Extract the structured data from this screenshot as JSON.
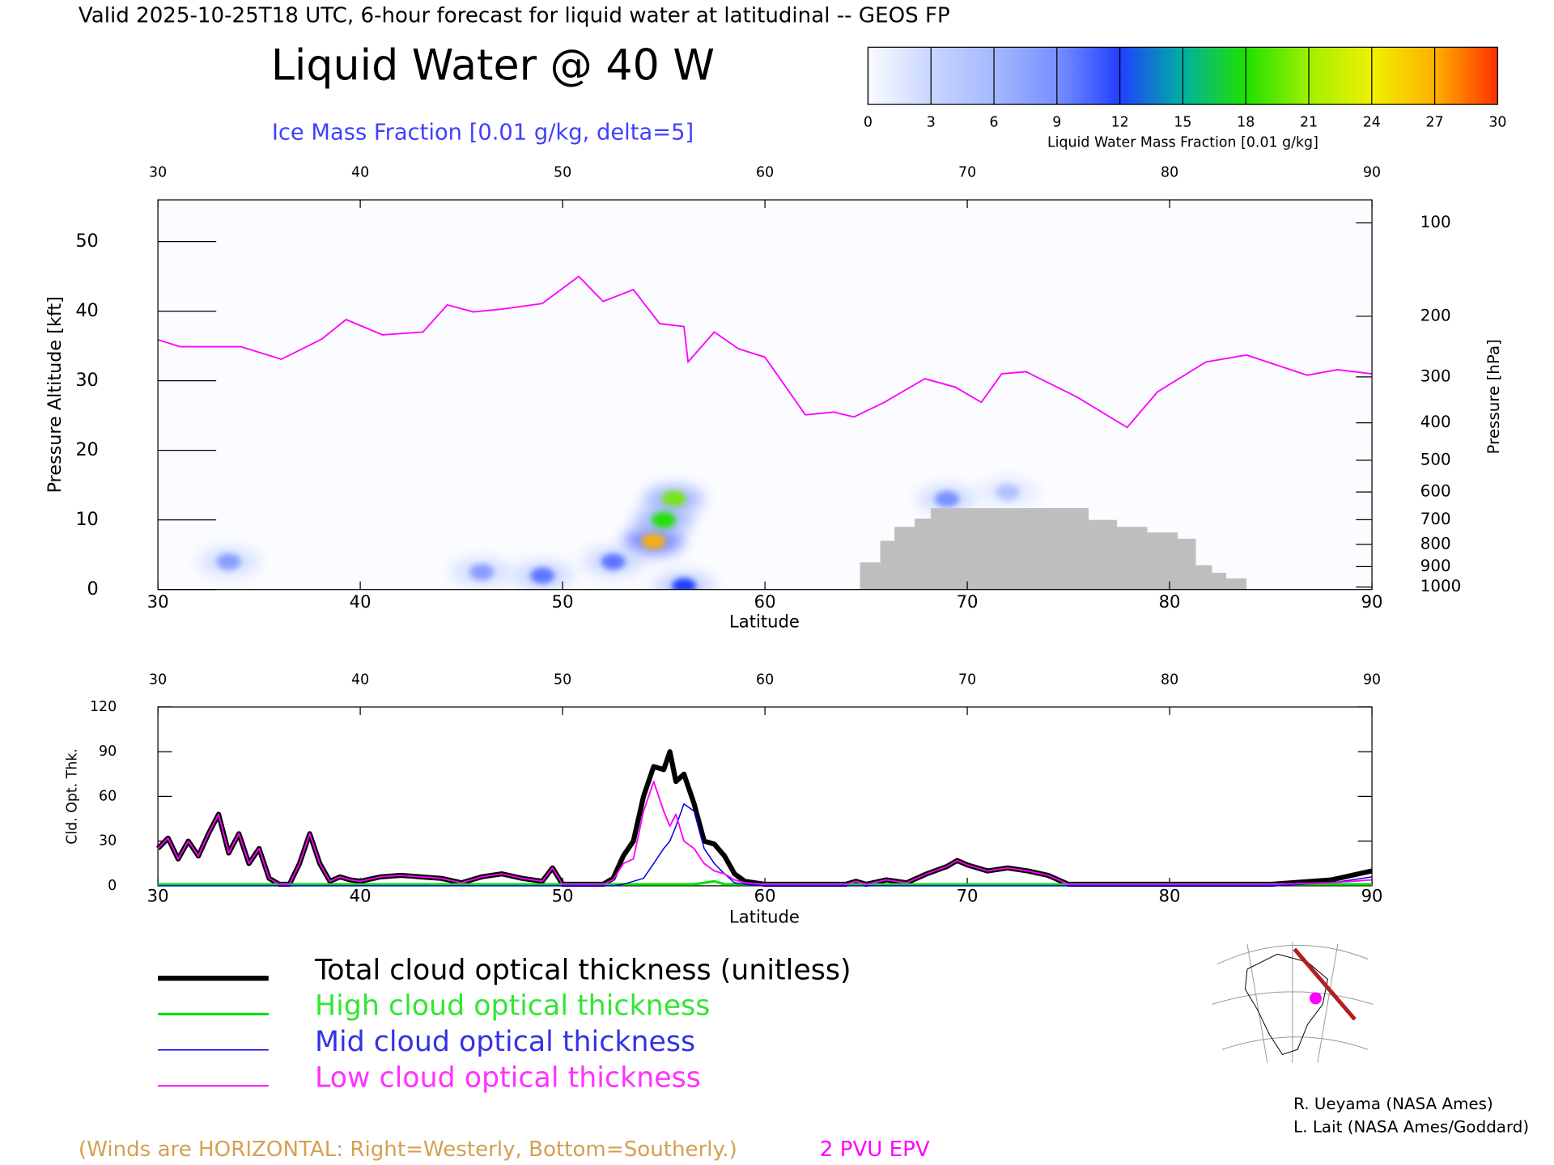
{
  "chart_data": [
    {
      "type": "cross-section",
      "suptitle": "Valid 2025-10-25T18 UTC, 6-hour forecast for liquid water at latitudinal -- GEOS FP",
      "title": "Liquid Water @ 40 W",
      "subtitle": "Ice Mass Fraction [0.01 g/kg, delta=5]",
      "xlabel": "Latitude",
      "ylabel": "Pressure Altitude [kft]",
      "y2label": "Pressure [hPa]",
      "xlim": [
        30,
        90
      ],
      "xticks": [
        30,
        40,
        50,
        60,
        70,
        80,
        90
      ],
      "ylim": [
        0,
        56
      ],
      "yticks": [
        0,
        10,
        20,
        30,
        40,
        50
      ],
      "y2lim": [
        1013,
        83
      ],
      "y2scale": "pressure-altitude",
      "y2ticks": [
        100,
        200,
        300,
        400,
        500,
        600,
        700,
        800,
        900,
        1000
      ],
      "colorbar": {
        "label": "Liquid Water Mass Fraction [0.01 g/kg]",
        "ticks": [
          0,
          3,
          6,
          9,
          12,
          15,
          18,
          21,
          24,
          27,
          30
        ],
        "colors": [
          "#fafbff",
          "#c8d6ff",
          "#a4b8ff",
          "#7890ff",
          "#2040ff",
          "#00b0a0",
          "#20e000",
          "#a0f000",
          "#f0f000",
          "#ffb000",
          "#ff3000"
        ]
      },
      "series": [
        {
          "name": "2 PVU EPV",
          "color": "#ff00ff",
          "x": [
            30.0,
            31.1,
            34.1,
            36.1,
            38.1,
            39.3,
            41.1,
            43.1,
            44.3,
            45.6,
            47.0,
            49.0,
            50.8,
            52.0,
            53.5,
            54.8,
            56.0,
            56.2,
            57.5,
            58.7,
            60.0,
            62.0,
            63.4,
            64.4,
            65.9,
            67.9,
            69.4,
            70.7,
            71.7,
            72.9,
            75.4,
            77.9,
            79.4,
            81.8,
            83.8,
            86.8,
            88.3,
            90.0
          ],
          "values": [
            35.9,
            34.9,
            34.9,
            33.1,
            36.0,
            38.8,
            36.6,
            37.0,
            40.9,
            39.9,
            40.3,
            41.1,
            45.0,
            41.4,
            43.1,
            38.2,
            37.8,
            32.7,
            37.0,
            34.6,
            33.4,
            25.1,
            25.5,
            24.8,
            26.9,
            30.3,
            29.1,
            26.9,
            31.0,
            31.3,
            27.7,
            23.3,
            28.4,
            32.7,
            33.7,
            30.8,
            31.6,
            31.0
          ]
        }
      ],
      "terrain": {
        "color": "#bebebe",
        "bins": [
          64.7,
          65.7,
          66.4,
          67.4,
          68.2,
          76.0,
          77.4,
          78.9,
          80.4,
          81.3,
          82.1,
          82.8,
          83.8
        ],
        "values": [
          3.9,
          7,
          9,
          10.2,
          11.7,
          10,
          9,
          8.2,
          7.3,
          3.5,
          2.4,
          1.6
        ]
      },
      "cells": {
        "lat": [
          54.5,
          55.5,
          55.0,
          52.5,
          33.5,
          46.0,
          49.0,
          56.0,
          69.0,
          72.0
        ],
        "alt": [
          7,
          13,
          10,
          4,
          4,
          2.5,
          2,
          0.5,
          13,
          14
        ],
        "values": [
          27,
          20,
          18,
          10,
          8,
          8,
          10,
          12,
          9,
          5
        ]
      }
    },
    {
      "type": "line",
      "xlabel": "Latitude",
      "ylabel": "Cld. Opt. Thk.",
      "xlim": [
        30,
        90
      ],
      "xticks": [
        30,
        40,
        50,
        60,
        70,
        80,
        90
      ],
      "ylim": [
        0,
        120
      ],
      "yticks": [
        0,
        30,
        60,
        90,
        120
      ],
      "x": [
        30,
        30.5,
        31,
        31.5,
        32,
        32.5,
        33,
        33.5,
        34,
        34.5,
        35,
        35.5,
        36,
        36.5,
        37,
        37.5,
        38,
        38.5,
        39,
        39.5,
        40,
        41,
        42,
        43,
        44,
        45,
        46,
        47,
        48,
        49,
        49.5,
        50,
        51,
        52,
        52.5,
        53,
        53.5,
        54,
        54.5,
        55,
        55.3,
        55.6,
        56,
        56.5,
        57,
        57.5,
        58,
        58.5,
        59,
        60,
        62,
        64,
        64.5,
        65,
        66,
        67,
        68,
        69,
        69.5,
        70,
        71,
        72,
        73,
        74,
        75,
        80,
        85,
        88,
        89,
        90
      ],
      "series": [
        {
          "name": "Total cloud optical thickness (unitless)",
          "color": "#000000",
          "width": 5,
          "values": [
            25,
            32,
            18,
            30,
            20,
            35,
            48,
            22,
            35,
            15,
            25,
            5,
            1,
            1,
            15,
            35,
            15,
            3,
            6,
            4,
            3,
            6,
            7,
            6,
            5,
            2,
            6,
            8,
            5,
            3,
            12,
            1,
            1,
            1,
            5,
            20,
            30,
            60,
            80,
            78,
            90,
            70,
            75,
            55,
            30,
            28,
            20,
            8,
            3,
            1,
            1,
            1,
            3,
            1,
            4,
            2,
            8,
            13,
            17,
            14,
            10,
            12,
            10,
            7,
            1,
            1,
            1,
            4,
            7,
            10
          ]
        },
        {
          "name": "High cloud optical thickness",
          "color": "#00e000",
          "width": 2.5,
          "values": [
            1,
            1,
            1,
            1,
            1,
            1,
            1,
            1,
            1,
            1,
            1,
            1,
            1,
            1,
            1,
            1,
            1,
            1,
            1,
            1,
            1,
            1,
            1,
            1,
            1,
            1,
            1,
            1,
            1,
            1,
            1,
            1,
            1,
            1,
            1,
            1,
            1,
            1,
            1,
            1,
            1,
            1,
            1,
            1,
            2,
            3,
            1,
            1,
            1,
            1,
            1,
            1,
            1,
            1,
            1,
            1,
            1,
            1,
            1,
            1,
            1,
            1,
            1,
            1,
            1,
            1,
            1,
            1,
            1,
            1
          ]
        },
        {
          "name": "Mid cloud optical thickness",
          "color": "#0000e0",
          "width": 1.2,
          "values": [
            0,
            0,
            0,
            0,
            0,
            0,
            0,
            0,
            0,
            0,
            0,
            0,
            0,
            0,
            0,
            0,
            0,
            0,
            0,
            0,
            0,
            0,
            0,
            0,
            0,
            0,
            0,
            0,
            0,
            0,
            0,
            0,
            0,
            0,
            0,
            1,
            3,
            5,
            15,
            25,
            30,
            40,
            55,
            50,
            25,
            15,
            8,
            2,
            1,
            0,
            0,
            0,
            0,
            0,
            0,
            0,
            0,
            0,
            0,
            0,
            0,
            0,
            0,
            0,
            0,
            0,
            0,
            2,
            4,
            6
          ]
        },
        {
          "name": "Low cloud optical thickness",
          "color": "#ff00ff",
          "width": 1.5,
          "values": [
            25,
            32,
            18,
            30,
            20,
            35,
            48,
            22,
            35,
            15,
            25,
            5,
            1,
            1,
            15,
            35,
            15,
            3,
            6,
            4,
            3,
            6,
            7,
            6,
            5,
            2,
            6,
            8,
            5,
            3,
            12,
            1,
            1,
            1,
            4,
            15,
            18,
            50,
            70,
            50,
            40,
            48,
            30,
            25,
            15,
            10,
            8,
            4,
            2,
            1,
            1,
            1,
            3,
            1,
            4,
            2,
            8,
            13,
            17,
            14,
            10,
            12,
            10,
            7,
            1,
            1,
            1,
            2,
            3,
            4
          ]
        }
      ]
    }
  ],
  "page": {
    "note": "(Winds are HORIZONTAL: Right=Westerly, Bottom=Southerly.)",
    "credits": [
      "R. Ueyama (NASA Ames)",
      "L. Lait (NASA Ames/Goddard)"
    ]
  }
}
